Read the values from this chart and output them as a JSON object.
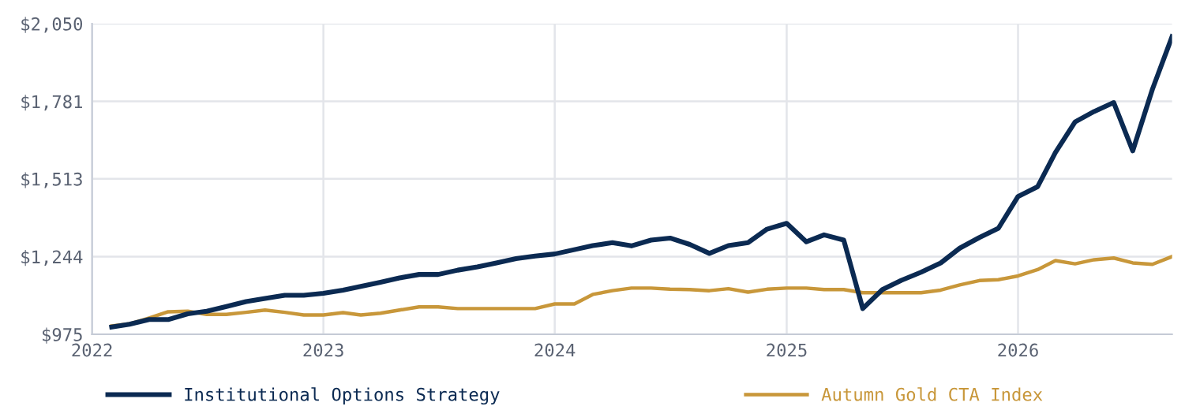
{
  "chart_data": {
    "type": "line",
    "x": [
      "2022-02",
      "2022-03",
      "2022-04",
      "2022-05",
      "2022-06",
      "2022-07",
      "2022-08",
      "2022-09",
      "2022-10",
      "2022-11",
      "2022-12",
      "2023-01",
      "2023-02",
      "2023-03",
      "2023-04",
      "2023-05",
      "2023-06",
      "2023-07",
      "2023-08",
      "2023-09",
      "2023-10",
      "2023-11",
      "2023-12",
      "2024-01",
      "2024-02",
      "2024-03",
      "2024-04",
      "2024-05",
      "2024-06",
      "2024-07",
      "2024-08",
      "2024-09",
      "2024-10",
      "2024-11",
      "2024-12",
      "2025-01",
      "2025-02",
      "2025-03",
      "2025-04",
      "2025-05",
      "2025-06",
      "2025-07",
      "2025-08",
      "2025-09",
      "2025-10",
      "2025-11",
      "2025-12",
      "2026-01",
      "2026-02",
      "2026-03",
      "2026-04",
      "2026-05",
      "2026-06",
      "2026-07",
      "2026-08",
      "2026-09"
    ],
    "series": [
      {
        "name": "Institutional Options Strategy",
        "color": "#0b2a52",
        "values": [
          1000,
          1010,
          1026,
          1026,
          1046,
          1055,
          1071,
          1088,
          1099,
          1110,
          1110,
          1117,
          1128,
          1141,
          1155,
          1170,
          1182,
          1182,
          1197,
          1208,
          1222,
          1237,
          1246,
          1253,
          1268,
          1282,
          1292,
          1281,
          1301,
          1308,
          1286,
          1255,
          1282,
          1292,
          1339,
          1359,
          1295,
          1319,
          1301,
          1064,
          1130,
          1162,
          1190,
          1222,
          1273,
          1310,
          1342,
          1452,
          1486,
          1604,
          1710,
          1746,
          1777,
          1610,
          1823,
          2005
        ]
      },
      {
        "name": "Autumn Gold CTA Index",
        "color": "#c8973a",
        "values": [
          1004,
          1011,
          1031,
          1053,
          1055,
          1044,
          1044,
          1051,
          1059,
          1051,
          1042,
          1042,
          1050,
          1042,
          1048,
          1059,
          1070,
          1070,
          1064,
          1064,
          1064,
          1064,
          1064,
          1080,
          1080,
          1113,
          1126,
          1135,
          1135,
          1131,
          1130,
          1126,
          1133,
          1121,
          1131,
          1135,
          1135,
          1130,
          1130,
          1119,
          1119,
          1119,
          1119,
          1128,
          1146,
          1161,
          1164,
          1177,
          1199,
          1230,
          1219,
          1233,
          1239,
          1222,
          1217,
          1244
        ]
      }
    ],
    "xlim": [
      "2022-01",
      "2026-09"
    ],
    "xticks": [
      "2022",
      "2023",
      "2024",
      "2025",
      "2026"
    ],
    "ylim": [
      975,
      2050
    ],
    "yticks": [
      {
        "value": 975,
        "label": "$975"
      },
      {
        "value": 1244,
        "label": "$1,244"
      },
      {
        "value": 1513,
        "label": "$1,513"
      },
      {
        "value": 1781,
        "label": "$1,781"
      },
      {
        "value": 2050,
        "label": "$2,050"
      }
    ],
    "grid": true,
    "legend": "bottom",
    "marker": "none",
    "line_style": "solid"
  }
}
